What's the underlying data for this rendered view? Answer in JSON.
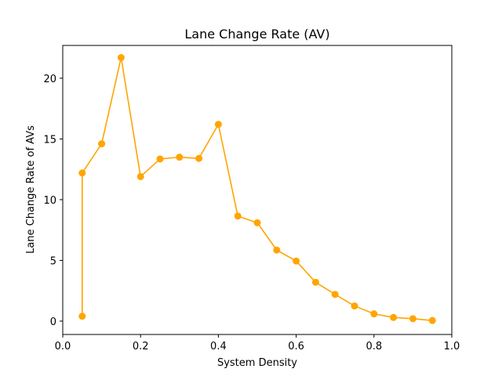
{
  "chart_data": {
    "type": "line",
    "title": "Lane Change Rate (AV)",
    "xlabel": "System Density",
    "ylabel": "Lane Change Rate of AVs",
    "xlim": [
      0.0,
      1.0
    ],
    "ylim": [
      -1.1,
      22.7
    ],
    "xticks": [
      0.0,
      0.2,
      0.4,
      0.6,
      0.8,
      1.0
    ],
    "xtick_labels": [
      "0.0",
      "0.2",
      "0.4",
      "0.6",
      "0.8",
      "1.0"
    ],
    "yticks": [
      0,
      5,
      10,
      15,
      20
    ],
    "ytick_labels": [
      "0",
      "5",
      "10",
      "15",
      "20"
    ],
    "grid": false,
    "color": "#ffa500",
    "marker": "circle",
    "series": [
      {
        "x": [
          0.05,
          0.05,
          0.1,
          0.15,
          0.2,
          0.25,
          0.3,
          0.35,
          0.4,
          0.45,
          0.5,
          0.55,
          0.6,
          0.65,
          0.7,
          0.75,
          0.8,
          0.85,
          0.9,
          0.95
        ],
        "y": [
          0.4,
          12.2,
          14.6,
          21.7,
          11.9,
          13.35,
          13.5,
          13.4,
          16.2,
          8.65,
          8.1,
          5.85,
          4.95,
          3.2,
          2.2,
          1.25,
          0.6,
          0.3,
          0.2,
          0.05
        ]
      }
    ]
  }
}
